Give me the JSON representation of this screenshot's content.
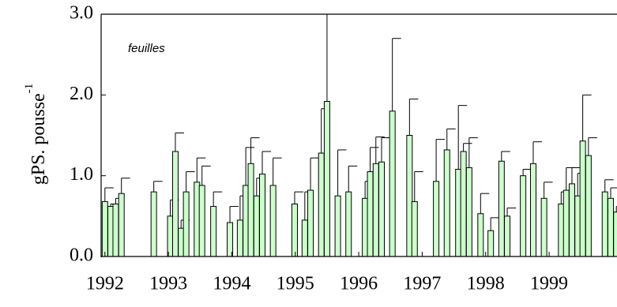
{
  "chart_data": {
    "type": "bar",
    "ylabel": "gPS. pousse",
    "ylabel_sup": "-1",
    "annotation": "feuilles",
    "color": "#ccffcc",
    "x": [
      1992.0,
      1992.09,
      1992.17,
      1992.26,
      1992.77,
      1993.03,
      1993.11,
      1993.2,
      1993.28,
      1993.45,
      1993.53,
      1993.71,
      1993.97,
      1994.13,
      1994.22,
      1994.3,
      1994.39,
      1994.48,
      1994.65,
      1994.99,
      1995.15,
      1995.24,
      1995.41,
      1995.5,
      1995.67,
      1995.84,
      1996.1,
      1996.18,
      1996.27,
      1996.36,
      1996.53,
      1996.8,
      1996.88,
      1997.22,
      1997.39,
      1997.57,
      1997.65,
      1997.74,
      1997.92,
      1998.08,
      1998.25,
      1998.34,
      1998.59,
      1998.75,
      1998.92,
      1999.19,
      1999.27,
      1999.36,
      1999.45,
      1999.53,
      1999.62,
      1999.88,
      1999.97,
      2000.06
    ],
    "values": [
      0.68,
      0.62,
      0.65,
      0.78,
      0.8,
      0.5,
      1.3,
      0.35,
      0.8,
      0.92,
      0.88,
      0.62,
      0.42,
      0.45,
      0.88,
      1.15,
      0.75,
      1.02,
      0.88,
      0.65,
      0.45,
      0.82,
      1.28,
      1.92,
      0.75,
      0.8,
      0.72,
      1.05,
      1.15,
      1.17,
      1.8,
      1.5,
      0.68,
      0.93,
      1.32,
      1.08,
      1.3,
      1.1,
      0.53,
      0.32,
      1.18,
      0.5,
      1.0,
      1.15,
      0.72,
      0.65,
      0.82,
      0.9,
      0.75,
      1.43,
      1.25,
      0.8,
      0.72,
      0.55
    ],
    "errors": [
      0.17,
      0.03,
      0.07,
      0.19,
      0.13,
      0.2,
      0.23,
      0.1,
      0.25,
      0.3,
      0.24,
      0.18,
      0.2,
      0.3,
      0.47,
      0.32,
      0.22,
      0.28,
      0.34,
      0.15,
      0.35,
      0.4,
      0.55,
      1.08,
      0.57,
      0.32,
      0.21,
      0.3,
      0.33,
      0.3,
      0.9,
      0.45,
      0.37,
      0.52,
      0.26,
      0.79,
      0.1,
      0.37,
      0.25,
      0.16,
      0.12,
      0.1,
      0.08,
      0.27,
      0.2,
      0.15,
      0.28,
      0.2,
      0.28,
      0.57,
      0.22,
      0.15,
      0.13,
      0.07
    ],
    "xlim": [
      1991.94,
      2000.07
    ],
    "xticks": [
      1992,
      1993,
      1994,
      1995,
      1996,
      1997,
      1998,
      1999
    ],
    "ylim": [
      0,
      3
    ],
    "yticks": [
      {
        "value": 0,
        "label": "0.0"
      },
      {
        "value": 1,
        "label": "1.0"
      },
      {
        "value": 2,
        "label": "2.0"
      },
      {
        "value": 3,
        "label": "3.0"
      }
    ]
  }
}
